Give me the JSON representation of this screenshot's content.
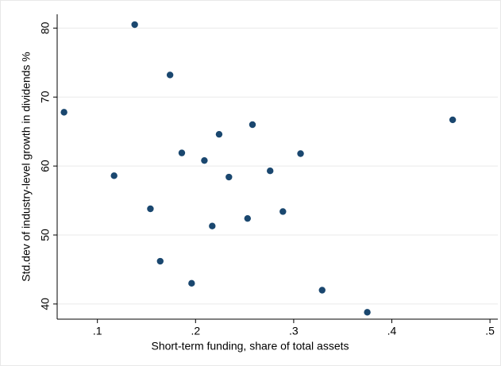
{
  "chart_data": {
    "type": "scatter",
    "xlabel": "Short-term funding, share of total assets",
    "ylabel": "Std.dev of industry-level growth in dividends %",
    "series": [
      {
        "color": "#1a476f",
        "x": [
          0.066,
          0.138,
          0.174,
          0.117,
          0.186,
          0.209,
          0.224,
          0.258,
          0.154,
          0.234,
          0.253,
          0.217,
          0.276,
          0.307,
          0.289,
          0.164,
          0.196,
          0.329,
          0.375,
          0.462
        ],
        "values": [
          67.8,
          80.5,
          73.2,
          58.6,
          61.9,
          60.8,
          64.6,
          66.0,
          53.8,
          58.4,
          52.4,
          51.3,
          59.3,
          61.8,
          53.4,
          46.2,
          43.0,
          42.0,
          38.8,
          66.7
        ]
      }
    ],
    "xlim": [
      0.059,
      0.508
    ],
    "xticks": [
      {
        "value": 0.1,
        "label": ".1"
      },
      {
        "value": 0.2,
        "label": ".2"
      },
      {
        "value": 0.3,
        "label": ".3"
      },
      {
        "value": 0.4,
        "label": ".4"
      },
      {
        "value": 0.5,
        "label": ".5"
      }
    ],
    "ylim": [
      37.8,
      82
    ],
    "yticks": [
      40,
      50,
      60,
      70,
      80
    ],
    "grid": true
  }
}
